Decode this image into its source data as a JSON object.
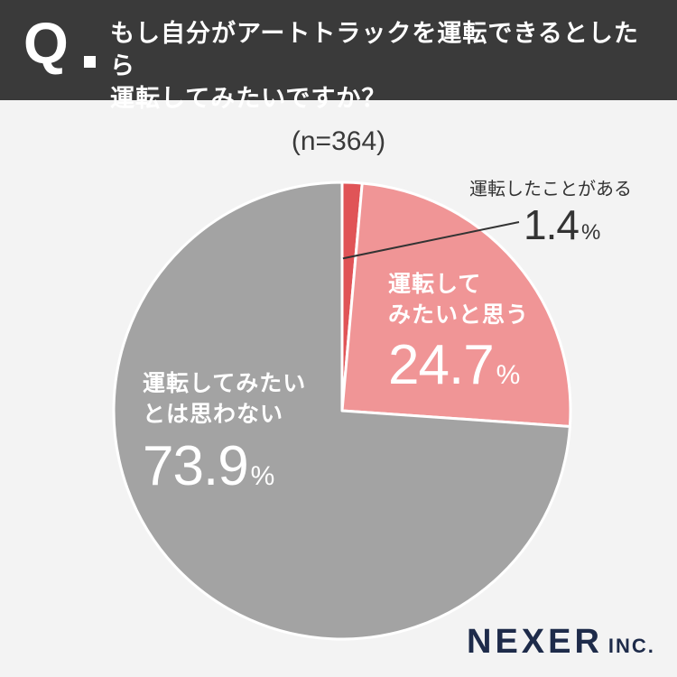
{
  "header": {
    "q_mark": "Q",
    "question_lines": [
      "もし自分がアートトラックを運転できるとしたら",
      "運転してみたいですか？"
    ]
  },
  "sample_size": "(n=364)",
  "brand": {
    "name": "NEXER",
    "suffix": "INC."
  },
  "colors": {
    "header_bg": "#3a3a3a",
    "background": "#f3f3f3",
    "slice_driven": "#e05457",
    "slice_want": "#f09596",
    "slice_not": "#a3a3a3"
  },
  "chart_data": {
    "type": "pie",
    "title": "もし自分がアートトラックを運転できるとしたら運転してみたいですか？",
    "n": 364,
    "unit": "%",
    "slices": [
      {
        "label": "運転したことがある",
        "label_lines": [
          "運転したことがある"
        ],
        "value": 1.4,
        "value_text": "1.4",
        "color": "#e05457"
      },
      {
        "label": "運転してみたいと思う",
        "label_lines": [
          "運転して",
          "みたいと思う"
        ],
        "value": 24.7,
        "value_text": "24.7",
        "color": "#f09596"
      },
      {
        "label": "運転してみたいとは思わない",
        "label_lines": [
          "運転してみたい",
          "とは思わない"
        ],
        "value": 73.9,
        "value_text": "73.9",
        "color": "#a3a3a3"
      }
    ]
  }
}
